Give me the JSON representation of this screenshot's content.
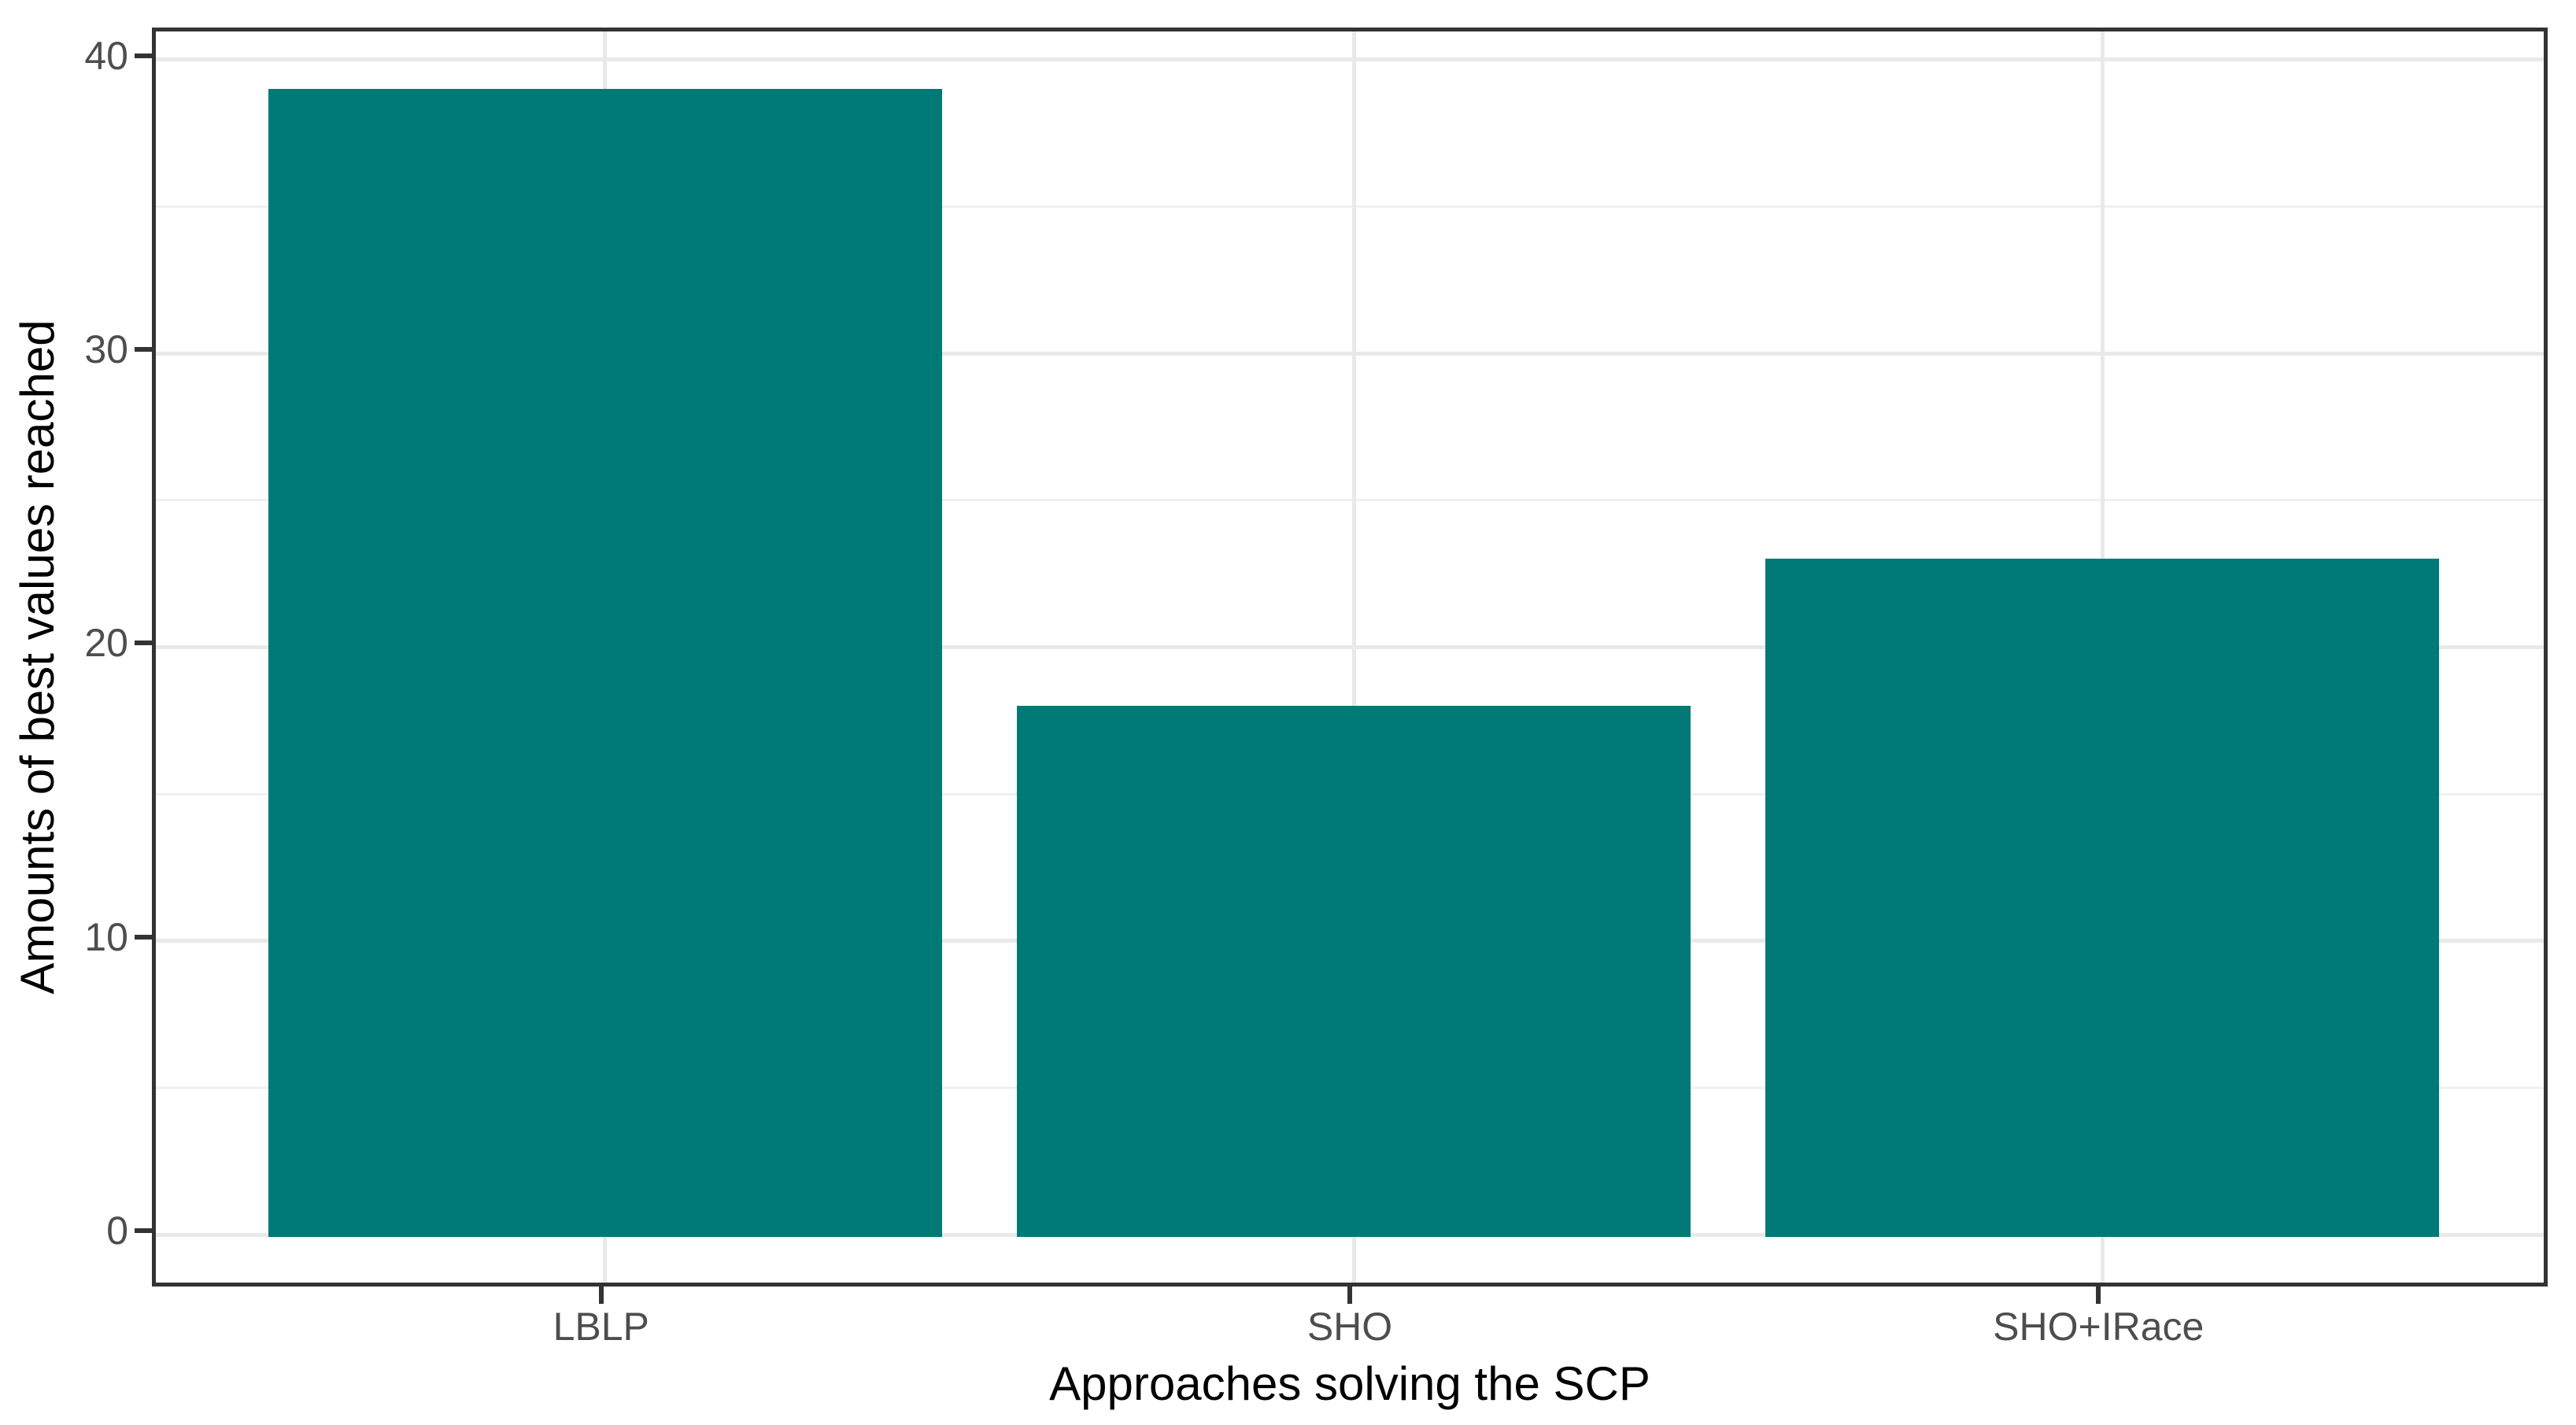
{
  "chart_data": {
    "type": "bar",
    "title": "",
    "categories": [
      "LBLP",
      "SHO",
      "SHO+IRace"
    ],
    "values": [
      39,
      18,
      23
    ],
    "xlabel": "Approaches solving the SCP",
    "ylabel": "Amounts of best values reached",
    "ylim": [
      0,
      40
    ],
    "yticks_major": [
      0,
      10,
      20,
      30,
      40
    ],
    "ytick_labels": [
      "0",
      "10",
      "20",
      "30",
      "40"
    ],
    "yticks_minor": [
      5,
      15,
      25,
      35
    ],
    "grid": "major and minor horizontal, major vertical at category centers",
    "legend": false,
    "colors": {
      "bar_fill": "#007a76",
      "panel_border": "#333333",
      "tick_mark": "#333333",
      "tick_label": "#4d4d4d",
      "axis_title": "#000000",
      "grid_major": "#e9e9e9",
      "grid_minor": "#f0f0f0",
      "background": "#ffffff"
    }
  }
}
